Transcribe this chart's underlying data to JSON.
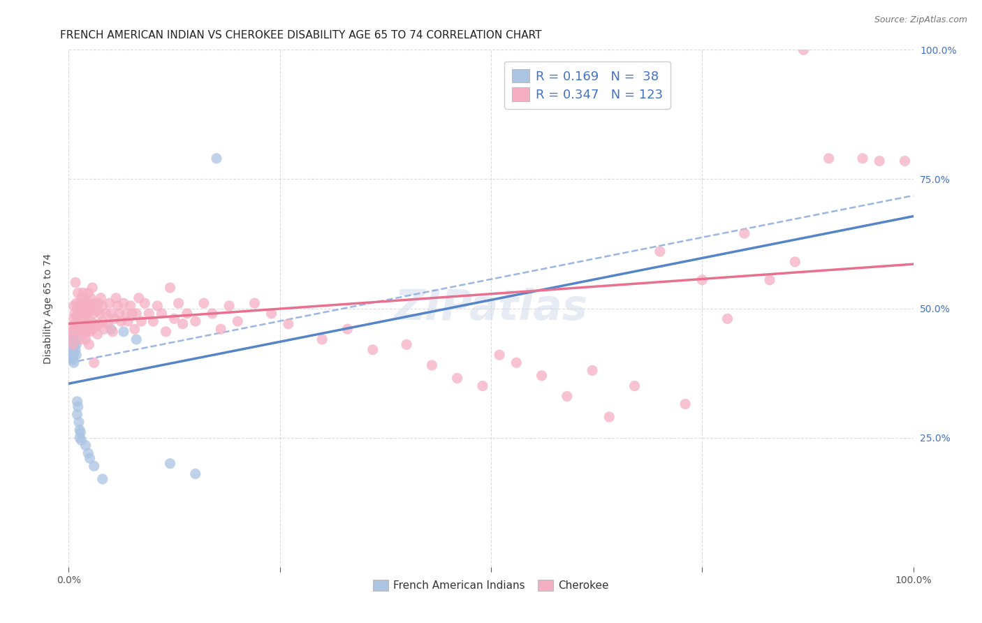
{
  "title": "FRENCH AMERICAN INDIAN VS CHEROKEE DISABILITY AGE 65 TO 74 CORRELATION CHART",
  "source": "Source: ZipAtlas.com",
  "ylabel": "Disability Age 65 to 74",
  "xmin": 0.0,
  "xmax": 1.0,
  "ymin": 0.0,
  "ymax": 1.0,
  "blue_R": 0.169,
  "blue_N": 38,
  "pink_R": 0.347,
  "pink_N": 123,
  "blue_color": "#aac4e2",
  "pink_color": "#f5afc3",
  "blue_line_color": "#5585c8",
  "pink_line_color": "#e8708e",
  "dashed_line_color": "#88aadd",
  "legend_text_color": "#4472c4",
  "background_color": "#ffffff",
  "grid_color": "#cccccc",
  "blue_points": [
    [
      0.002,
      0.435
    ],
    [
      0.002,
      0.415
    ],
    [
      0.003,
      0.425
    ],
    [
      0.003,
      0.41
    ],
    [
      0.004,
      0.43
    ],
    [
      0.004,
      0.42
    ],
    [
      0.004,
      0.405
    ],
    [
      0.005,
      0.44
    ],
    [
      0.005,
      0.415
    ],
    [
      0.005,
      0.4
    ],
    [
      0.006,
      0.425
    ],
    [
      0.006,
      0.41
    ],
    [
      0.006,
      0.395
    ],
    [
      0.007,
      0.45
    ],
    [
      0.007,
      0.435
    ],
    [
      0.008,
      0.44
    ],
    [
      0.008,
      0.42
    ],
    [
      0.009,
      0.43
    ],
    [
      0.009,
      0.41
    ],
    [
      0.01,
      0.32
    ],
    [
      0.01,
      0.295
    ],
    [
      0.011,
      0.31
    ],
    [
      0.012,
      0.28
    ],
    [
      0.013,
      0.265
    ],
    [
      0.013,
      0.25
    ],
    [
      0.014,
      0.26
    ],
    [
      0.015,
      0.245
    ],
    [
      0.02,
      0.235
    ],
    [
      0.023,
      0.22
    ],
    [
      0.025,
      0.21
    ],
    [
      0.03,
      0.195
    ],
    [
      0.04,
      0.17
    ],
    [
      0.05,
      0.46
    ],
    [
      0.065,
      0.455
    ],
    [
      0.08,
      0.44
    ],
    [
      0.12,
      0.2
    ],
    [
      0.15,
      0.18
    ],
    [
      0.175,
      0.79
    ]
  ],
  "pink_points": [
    [
      0.003,
      0.445
    ],
    [
      0.004,
      0.465
    ],
    [
      0.005,
      0.43
    ],
    [
      0.005,
      0.455
    ],
    [
      0.006,
      0.48
    ],
    [
      0.006,
      0.505
    ],
    [
      0.007,
      0.49
    ],
    [
      0.007,
      0.46
    ],
    [
      0.008,
      0.55
    ],
    [
      0.008,
      0.47
    ],
    [
      0.009,
      0.51
    ],
    [
      0.009,
      0.485
    ],
    [
      0.01,
      0.465
    ],
    [
      0.01,
      0.5
    ],
    [
      0.011,
      0.53
    ],
    [
      0.011,
      0.475
    ],
    [
      0.012,
      0.495
    ],
    [
      0.012,
      0.455
    ],
    [
      0.013,
      0.51
    ],
    [
      0.013,
      0.47
    ],
    [
      0.014,
      0.49
    ],
    [
      0.014,
      0.44
    ],
    [
      0.015,
      0.52
    ],
    [
      0.015,
      0.47
    ],
    [
      0.016,
      0.505
    ],
    [
      0.016,
      0.455
    ],
    [
      0.017,
      0.53
    ],
    [
      0.017,
      0.485
    ],
    [
      0.018,
      0.51
    ],
    [
      0.018,
      0.46
    ],
    [
      0.019,
      0.495
    ],
    [
      0.019,
      0.45
    ],
    [
      0.02,
      0.515
    ],
    [
      0.02,
      0.475
    ],
    [
      0.02,
      0.44
    ],
    [
      0.021,
      0.505
    ],
    [
      0.021,
      0.455
    ],
    [
      0.022,
      0.49
    ],
    [
      0.023,
      0.53
    ],
    [
      0.023,
      0.47
    ],
    [
      0.024,
      0.51
    ],
    [
      0.024,
      0.43
    ],
    [
      0.025,
      0.495
    ],
    [
      0.025,
      0.455
    ],
    [
      0.026,
      0.52
    ],
    [
      0.026,
      0.475
    ],
    [
      0.027,
      0.505
    ],
    [
      0.028,
      0.46
    ],
    [
      0.028,
      0.54
    ],
    [
      0.029,
      0.49
    ],
    [
      0.03,
      0.47
    ],
    [
      0.03,
      0.395
    ],
    [
      0.031,
      0.51
    ],
    [
      0.032,
      0.465
    ],
    [
      0.033,
      0.495
    ],
    [
      0.034,
      0.45
    ],
    [
      0.035,
      0.51
    ],
    [
      0.036,
      0.47
    ],
    [
      0.037,
      0.49
    ],
    [
      0.038,
      0.52
    ],
    [
      0.04,
      0.475
    ],
    [
      0.04,
      0.505
    ],
    [
      0.042,
      0.46
    ],
    [
      0.044,
      0.49
    ],
    [
      0.046,
      0.47
    ],
    [
      0.048,
      0.51
    ],
    [
      0.05,
      0.49
    ],
    [
      0.052,
      0.455
    ],
    [
      0.054,
      0.48
    ],
    [
      0.056,
      0.52
    ],
    [
      0.058,
      0.505
    ],
    [
      0.06,
      0.49
    ],
    [
      0.062,
      0.475
    ],
    [
      0.065,
      0.51
    ],
    [
      0.068,
      0.49
    ],
    [
      0.07,
      0.475
    ],
    [
      0.073,
      0.505
    ],
    [
      0.075,
      0.49
    ],
    [
      0.078,
      0.46
    ],
    [
      0.08,
      0.49
    ],
    [
      0.083,
      0.52
    ],
    [
      0.086,
      0.475
    ],
    [
      0.09,
      0.51
    ],
    [
      0.095,
      0.49
    ],
    [
      0.1,
      0.475
    ],
    [
      0.105,
      0.505
    ],
    [
      0.11,
      0.49
    ],
    [
      0.115,
      0.455
    ],
    [
      0.12,
      0.54
    ],
    [
      0.125,
      0.48
    ],
    [
      0.13,
      0.51
    ],
    [
      0.135,
      0.47
    ],
    [
      0.14,
      0.49
    ],
    [
      0.15,
      0.475
    ],
    [
      0.16,
      0.51
    ],
    [
      0.17,
      0.49
    ],
    [
      0.18,
      0.46
    ],
    [
      0.19,
      0.505
    ],
    [
      0.2,
      0.475
    ],
    [
      0.22,
      0.51
    ],
    [
      0.24,
      0.49
    ],
    [
      0.26,
      0.47
    ],
    [
      0.3,
      0.44
    ],
    [
      0.33,
      0.46
    ],
    [
      0.36,
      0.42
    ],
    [
      0.4,
      0.43
    ],
    [
      0.43,
      0.39
    ],
    [
      0.46,
      0.365
    ],
    [
      0.49,
      0.35
    ],
    [
      0.51,
      0.41
    ],
    [
      0.53,
      0.395
    ],
    [
      0.56,
      0.37
    ],
    [
      0.59,
      0.33
    ],
    [
      0.62,
      0.38
    ],
    [
      0.64,
      0.29
    ],
    [
      0.67,
      0.35
    ],
    [
      0.7,
      0.61
    ],
    [
      0.73,
      0.315
    ],
    [
      0.75,
      0.555
    ],
    [
      0.78,
      0.48
    ],
    [
      0.8,
      0.645
    ],
    [
      0.83,
      0.555
    ],
    [
      0.86,
      0.59
    ],
    [
      0.87,
      1.0
    ],
    [
      0.9,
      0.79
    ],
    [
      0.94,
      0.79
    ],
    [
      0.96,
      0.785
    ],
    [
      0.99,
      0.785
    ]
  ],
  "title_fontsize": 11,
  "source_fontsize": 9,
  "axis_label_fontsize": 10,
  "tick_fontsize": 10,
  "legend_fontsize": 13
}
